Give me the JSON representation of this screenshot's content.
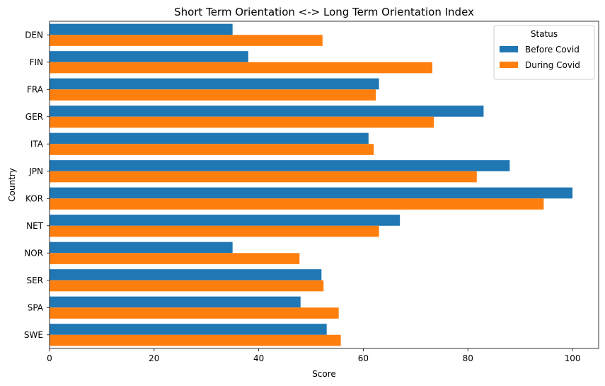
{
  "chart_data": {
    "type": "bar",
    "orientation": "horizontal",
    "title": "Short Term Orientation <-> Long Term Orientation Index",
    "xlabel": "Score",
    "ylabel": "Country",
    "xlim": [
      0,
      105
    ],
    "xticks": [
      0,
      20,
      40,
      60,
      80,
      100
    ],
    "grid": false,
    "categories": [
      "DEN",
      "FIN",
      "FRA",
      "GER",
      "ITA",
      "JPN",
      "KOR",
      "NET",
      "NOR",
      "SER",
      "SPA",
      "SWE"
    ],
    "series": [
      {
        "name": "Before Covid",
        "color": "#1f77b4",
        "values": [
          35,
          38,
          63,
          83,
          61,
          88,
          100,
          67,
          35,
          52,
          48,
          53
        ]
      },
      {
        "name": "During Covid",
        "color": "#ff7f0e",
        "values": [
          52.2,
          73.2,
          62.4,
          73.5,
          62.0,
          81.7,
          94.5,
          63.0,
          47.8,
          52.4,
          55.3,
          55.7
        ]
      }
    ],
    "legend": {
      "title": "Status",
      "placement": "top-right"
    }
  }
}
